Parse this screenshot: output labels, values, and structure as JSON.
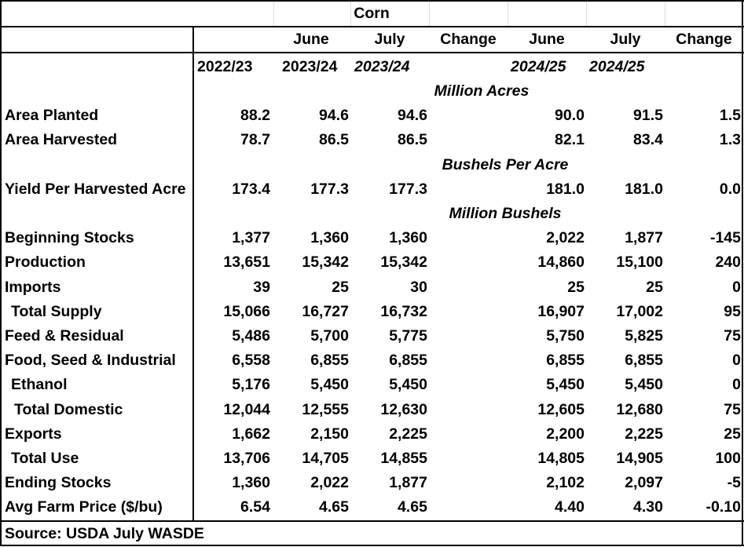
{
  "title": "Corn",
  "header_row1": [
    "June",
    "July",
    "Change",
    "June",
    "July",
    "Change"
  ],
  "header_row2": [
    "2022/23",
    "2023/24",
    "2023/24",
    "2024/25",
    "2024/25"
  ],
  "units": {
    "acres": "Million Acres",
    "yield": "Bushels Per Acre",
    "bushels": "Million Bushels"
  },
  "rows": [
    {
      "label": "Area Planted",
      "v": [
        "88.2",
        "94.6",
        "94.6",
        "",
        "90.0",
        "91.5",
        "1.5"
      ]
    },
    {
      "label": "Area Harvested",
      "v": [
        "78.7",
        "86.5",
        "86.5",
        "",
        "82.1",
        "83.4",
        "1.3"
      ]
    },
    {
      "label": "Yield Per Harvested Acre",
      "v": [
        "173.4",
        "177.3",
        "177.3",
        "",
        "181.0",
        "181.0",
        "0.0"
      ]
    },
    {
      "label": "Beginning Stocks",
      "v": [
        "1,377",
        "1,360",
        "1,360",
        "",
        "2,022",
        "1,877",
        "-145"
      ]
    },
    {
      "label": "Production",
      "v": [
        "13,651",
        "15,342",
        "15,342",
        "",
        "14,860",
        "15,100",
        "240"
      ]
    },
    {
      "label": "Imports",
      "v": [
        "39",
        "25",
        "30",
        "",
        "25",
        "25",
        "0"
      ]
    },
    {
      "label": "Total Supply",
      "v": [
        "15,066",
        "16,727",
        "16,732",
        "",
        "16,907",
        "17,002",
        "95"
      ]
    },
    {
      "label": "Feed & Residual",
      "v": [
        "5,486",
        "5,700",
        "5,775",
        "",
        "5,750",
        "5,825",
        "75"
      ]
    },
    {
      "label": "Food, Seed & Industrial",
      "v": [
        "6,558",
        "6,855",
        "6,855",
        "",
        "6,855",
        "6,855",
        "0"
      ]
    },
    {
      "label": "Ethanol",
      "v": [
        "5,176",
        "5,450",
        "5,450",
        "",
        "5,450",
        "5,450",
        "0"
      ]
    },
    {
      "label": "Total Domestic",
      "v": [
        "12,044",
        "12,555",
        "12,630",
        "",
        "12,605",
        "12,680",
        "75"
      ]
    },
    {
      "label": "Exports",
      "v": [
        "1,662",
        "2,150",
        "2,225",
        "",
        "2,200",
        "2,225",
        "25"
      ]
    },
    {
      "label": "Total Use",
      "v": [
        "13,706",
        "14,705",
        "14,855",
        "",
        "14,805",
        "14,905",
        "100"
      ]
    },
    {
      "label": "Ending Stocks",
      "v": [
        "1,360",
        "2,022",
        "1,877",
        "",
        "2,102",
        "2,097",
        "-5"
      ]
    },
    {
      "label": "Avg Farm Price ($/bu)",
      "v": [
        "6.54",
        "4.65",
        "4.65",
        "",
        "4.40",
        "4.30",
        "-0.10"
      ]
    }
  ],
  "source": "Source: USDA July WASDE"
}
